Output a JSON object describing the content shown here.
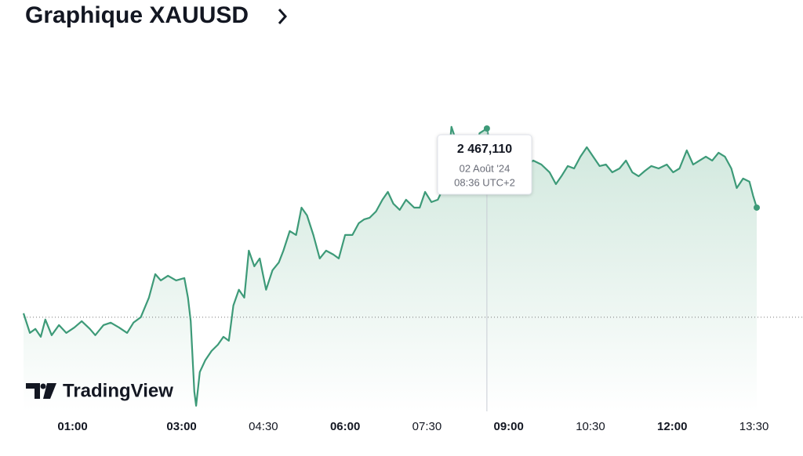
{
  "chart_data": {
    "type": "area",
    "title": "Graphique XAUUSD",
    "watermark": "TradingView",
    "color": "#3d9a78",
    "x": [
      6,
      13,
      19,
      25,
      30,
      37,
      45,
      53,
      62,
      70,
      79,
      85,
      94,
      102,
      111,
      120,
      127,
      135,
      144,
      151,
      157,
      165,
      174,
      183,
      187,
      190,
      194,
      196,
      200,
      206,
      213,
      220,
      226,
      232,
      237,
      243,
      249,
      254,
      260,
      266,
      273,
      280,
      287,
      292,
      299,
      306,
      312,
      318,
      325,
      332,
      339,
      347,
      353,
      360,
      368,
      375,
      381,
      387,
      394,
      401,
      407,
      413,
      420,
      427,
      436,
      442,
      448,
      455,
      462,
      468,
      474,
      477,
      485,
      494,
      502,
      508,
      516,
      522,
      533,
      541,
      550,
      559,
      567,
      576,
      585,
      592,
      598,
      605,
      612,
      619,
      626,
      633,
      640,
      647,
      654,
      662,
      669,
      676,
      683,
      690,
      697,
      705,
      714,
      721,
      728,
      736,
      743,
      750,
      757,
      764,
      771,
      778,
      785,
      791,
      798,
      805,
      809,
      813
    ],
    "values": [
      2446.44,
      2444.25,
      2444.69,
      2443.81,
      2445.74,
      2443.99,
      2445.12,
      2444.25,
      2444.86,
      2445.56,
      2444.69,
      2443.99,
      2445.12,
      2445.39,
      2444.86,
      2444.25,
      2445.39,
      2446.0,
      2448.19,
      2450.82,
      2450.12,
      2450.64,
      2450.12,
      2450.38,
      2448.19,
      2445.56,
      2437.68,
      2436.1,
      2439.87,
      2441.18,
      2442.23,
      2442.93,
      2443.81,
      2443.37,
      2447.31,
      2449.07,
      2448.19,
      2453.45,
      2451.69,
      2452.57,
      2449.07,
      2451.26,
      2452.13,
      2453.45,
      2455.64,
      2455.2,
      2458.26,
      2457.39,
      2455.2,
      2452.57,
      2453.45,
      2453.01,
      2452.57,
      2455.2,
      2455.2,
      2456.51,
      2456.95,
      2457.13,
      2457.83,
      2459.14,
      2460.02,
      2458.7,
      2458.0,
      2459.14,
      2458.26,
      2458.26,
      2460.02,
      2458.88,
      2459.14,
      2460.45,
      2463.96,
      2467.29,
      2464.83,
      2465.71,
      2464.4,
      2466.59,
      2467.11,
      2463.96,
      2464.83,
      2465.27,
      2463.96,
      2462.91,
      2463.52,
      2463.08,
      2462.21,
      2460.89,
      2461.77,
      2462.91,
      2462.64,
      2463.96,
      2465.01,
      2463.96,
      2462.91,
      2463.08,
      2462.21,
      2462.64,
      2463.52,
      2462.21,
      2461.77,
      2462.38,
      2462.91,
      2462.64,
      2463.08,
      2462.21,
      2462.64,
      2464.66,
      2463.08,
      2463.52,
      2463.96,
      2463.52,
      2464.4,
      2463.96,
      2462.64,
      2460.45,
      2461.51,
      2461.16,
      2459.58,
      2458.26
    ],
    "xlim": [
      6,
      813
    ],
    "ylim": [
      2436.0,
      2470.0
    ],
    "xticks": [
      {
        "value": 60,
        "label": "01:00",
        "bold": true
      },
      {
        "value": 180,
        "label": "03:00",
        "bold": true
      },
      {
        "value": 270,
        "label": "04:30",
        "bold": false
      },
      {
        "value": 360,
        "label": "06:00",
        "bold": true
      },
      {
        "value": 450,
        "label": "07:30",
        "bold": false
      },
      {
        "value": 540,
        "label": "09:00",
        "bold": true
      },
      {
        "value": 630,
        "label": "10:30",
        "bold": false
      },
      {
        "value": 720,
        "label": "12:00",
        "bold": true
      },
      {
        "value": 810,
        "label": "13:30",
        "bold": false
      }
    ],
    "reference_line": 2446.0,
    "tooltip": {
      "x": 516,
      "value": 2467.11,
      "label": "2 467,110",
      "date": "02 Août '24",
      "time": "08:36 UTC+2"
    }
  }
}
